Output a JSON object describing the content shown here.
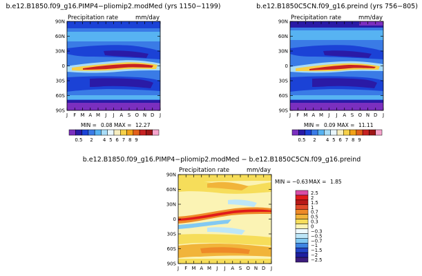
{
  "colors": {
    "abs_scale": [
      "#7b2fbf",
      "#2a1aa6",
      "#1b42d6",
      "#3a7be6",
      "#57b3f2",
      "#a8dcf7",
      "#e9f6fb",
      "#f7eec0",
      "#f6d048",
      "#f2a218",
      "#e3601a",
      "#c72222",
      "#9e1616",
      "#f6a4cc"
    ],
    "diff_scale": [
      "#d94da6",
      "#e11a1a",
      "#b81818",
      "#e04a2a",
      "#ee8a28",
      "#f1b43a",
      "#f6dd5a",
      "#fbf3b4",
      "#eef9fd",
      "#bde6f8",
      "#82c9f2",
      "#3f86e3",
      "#2345c8",
      "#1f1fa0",
      "#3c1c7c"
    ]
  },
  "chart_data": [
    {
      "type": "heatmap",
      "title": "b.e12.B1850.f09_g16.PIMP4−pliomip2.modMed (yrs 1150−1199)",
      "subtitle_left": "Precipitation rate",
      "subtitle_right": "mm/day",
      "x": [
        "J",
        "F",
        "M",
        "A",
        "M",
        "J",
        "J",
        "A",
        "S",
        "O",
        "N",
        "D",
        "J"
      ],
      "y_ticks": [
        "90N",
        "60N",
        "30N",
        "0",
        "30S",
        "60S",
        "90S"
      ],
      "ylim": [
        -90,
        90
      ],
      "min_label": "MIN =",
      "min_value": "0.08",
      "max_label": "MAX =",
      "max_value": "12.27",
      "colorbar_labels": [
        "0.5",
        "2",
        "4",
        "5",
        "6",
        "7",
        "8",
        "9"
      ],
      "colorbar_orientation": "horizontal"
    },
    {
      "type": "heatmap",
      "title": "b.e12.B1850C5CN.f09_g16.preind (yrs 756−805)",
      "subtitle_left": "Precipitation rate",
      "subtitle_right": "mm/day",
      "x": [
        "J",
        "F",
        "M",
        "A",
        "M",
        "J",
        "J",
        "A",
        "S",
        "O",
        "N",
        "D",
        "J"
      ],
      "y_ticks": [
        "90N",
        "60N",
        "30N",
        "0",
        "30S",
        "60S",
        "90S"
      ],
      "ylim": [
        -90,
        90
      ],
      "min_label": "MIN =",
      "min_value": "0.09",
      "max_label": "MAX =",
      "max_value": "11.11",
      "colorbar_labels": [
        "0.5",
        "2",
        "4",
        "5",
        "6",
        "7",
        "8",
        "9"
      ],
      "colorbar_orientation": "horizontal"
    },
    {
      "type": "heatmap",
      "title": "b.e12.B1850.f09_g16.PIMP4−pliomip2.modMed − b.e12.B1850C5CN.f09_g16.preind",
      "subtitle_left": "Precipitation rate",
      "subtitle_right": "mm/day",
      "x": [
        "J",
        "F",
        "M",
        "A",
        "M",
        "J",
        "J",
        "A",
        "S",
        "O",
        "N",
        "D",
        "J"
      ],
      "y_ticks": [
        "90N",
        "60N",
        "30N",
        "0",
        "30S",
        "60S",
        "90S"
      ],
      "ylim": [
        -90,
        90
      ],
      "min_label": "MIN =",
      "min_value": "−0.63",
      "max_label": "MAX =",
      "max_value": "1.85",
      "colorbar_labels": [
        "2.5",
        "2",
        "1.5",
        "1",
        "0.7",
        "0.5",
        "0.3",
        "0",
        "−0.3",
        "−0.5",
        "−0.7",
        "−1",
        "−1.5",
        "−2",
        "−2.5"
      ],
      "colorbar_orientation": "vertical"
    }
  ]
}
